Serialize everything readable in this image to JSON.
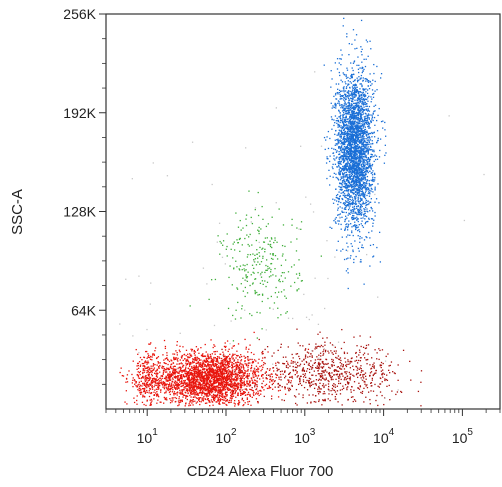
{
  "chart_data": {
    "type": "scatter",
    "title": "",
    "xlabel": "CD24 Alexa Fluor 700",
    "ylabel": "SSC-A",
    "x_scale": "log",
    "xlim": [
      3,
      300000
    ],
    "ylim": [
      0,
      262144
    ],
    "x_ticks": [
      {
        "value": 10,
        "base": "10",
        "exp": "1"
      },
      {
        "value": 100,
        "base": "10",
        "exp": "2"
      },
      {
        "value": 1000,
        "base": "10",
        "exp": "3"
      },
      {
        "value": 10000,
        "base": "10",
        "exp": "4"
      },
      {
        "value": 100000,
        "base": "10",
        "exp": "5"
      }
    ],
    "y_ticks": [
      {
        "value": 65536,
        "label": "64K"
      },
      {
        "value": 131072,
        "label": "128K"
      },
      {
        "value": 196608,
        "label": "192K"
      },
      {
        "value": 262144,
        "label": "256K"
      }
    ],
    "grid": false,
    "legend": "none",
    "series": [
      {
        "color": "#e8140c",
        "clusters": [
          {
            "x_center": 60,
            "y_center": 20000,
            "x_spread_log10": 0.35,
            "y_spread": 9000,
            "points": 2600
          },
          {
            "x_center": 10,
            "y_center": 20000,
            "x_spread_log10": 0.12,
            "y_spread": 9000,
            "points": 250
          }
        ]
      },
      {
        "color": "#a8130f",
        "clusters": [
          {
            "x_center": 2000,
            "y_center": 23000,
            "x_spread_log10": 0.45,
            "y_spread": 10000,
            "points": 750
          }
        ]
      },
      {
        "color": "#3fae3a",
        "clusters": [
          {
            "x_center": 280,
            "y_center": 95000,
            "x_spread_log10": 0.25,
            "y_spread": 18000,
            "points": 260
          }
        ]
      },
      {
        "color": "#1a6fd6",
        "clusters": [
          {
            "x_center": 4300,
            "y_center": 172000,
            "x_spread_log10": 0.12,
            "y_spread": 26000,
            "points": 3000
          }
        ]
      },
      {
        "color": "#c8c8c8",
        "clusters": [
          {
            "x_center": 300,
            "y_center": 90000,
            "x_spread_log10": 0.9,
            "y_spread": 60000,
            "points": 90
          }
        ]
      }
    ]
  }
}
